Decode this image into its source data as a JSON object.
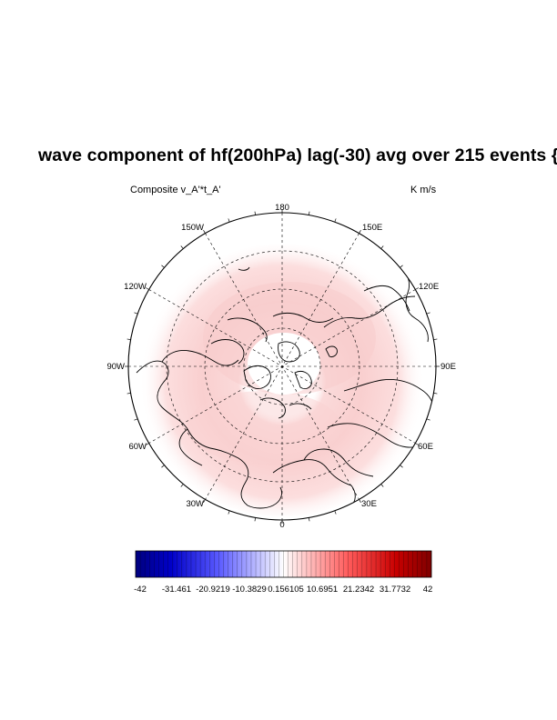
{
  "title": "wave component of hf(200hPa) lag(-30) avg over 215 events {",
  "left_label": "Composite  v_A'*t_A'",
  "right_label": "K m/s",
  "map": {
    "projection": "polar-stereographic-north",
    "longitude_labels": [
      "180",
      "150E",
      "120E",
      "90E",
      "60E",
      "30E",
      "0",
      "30W",
      "60W",
      "90W",
      "120W",
      "150W"
    ]
  },
  "colorbar": {
    "range": [
      -42,
      42
    ],
    "colors": {
      "low": "#00007f",
      "mid": "#ffffff",
      "high": "#7f0000"
    },
    "tick_labels": [
      "-42",
      "-31.461",
      "-20.9219",
      "-10.3829",
      "0.156105",
      "10.6951",
      "21.2342",
      "31.7732",
      "42"
    ]
  }
}
